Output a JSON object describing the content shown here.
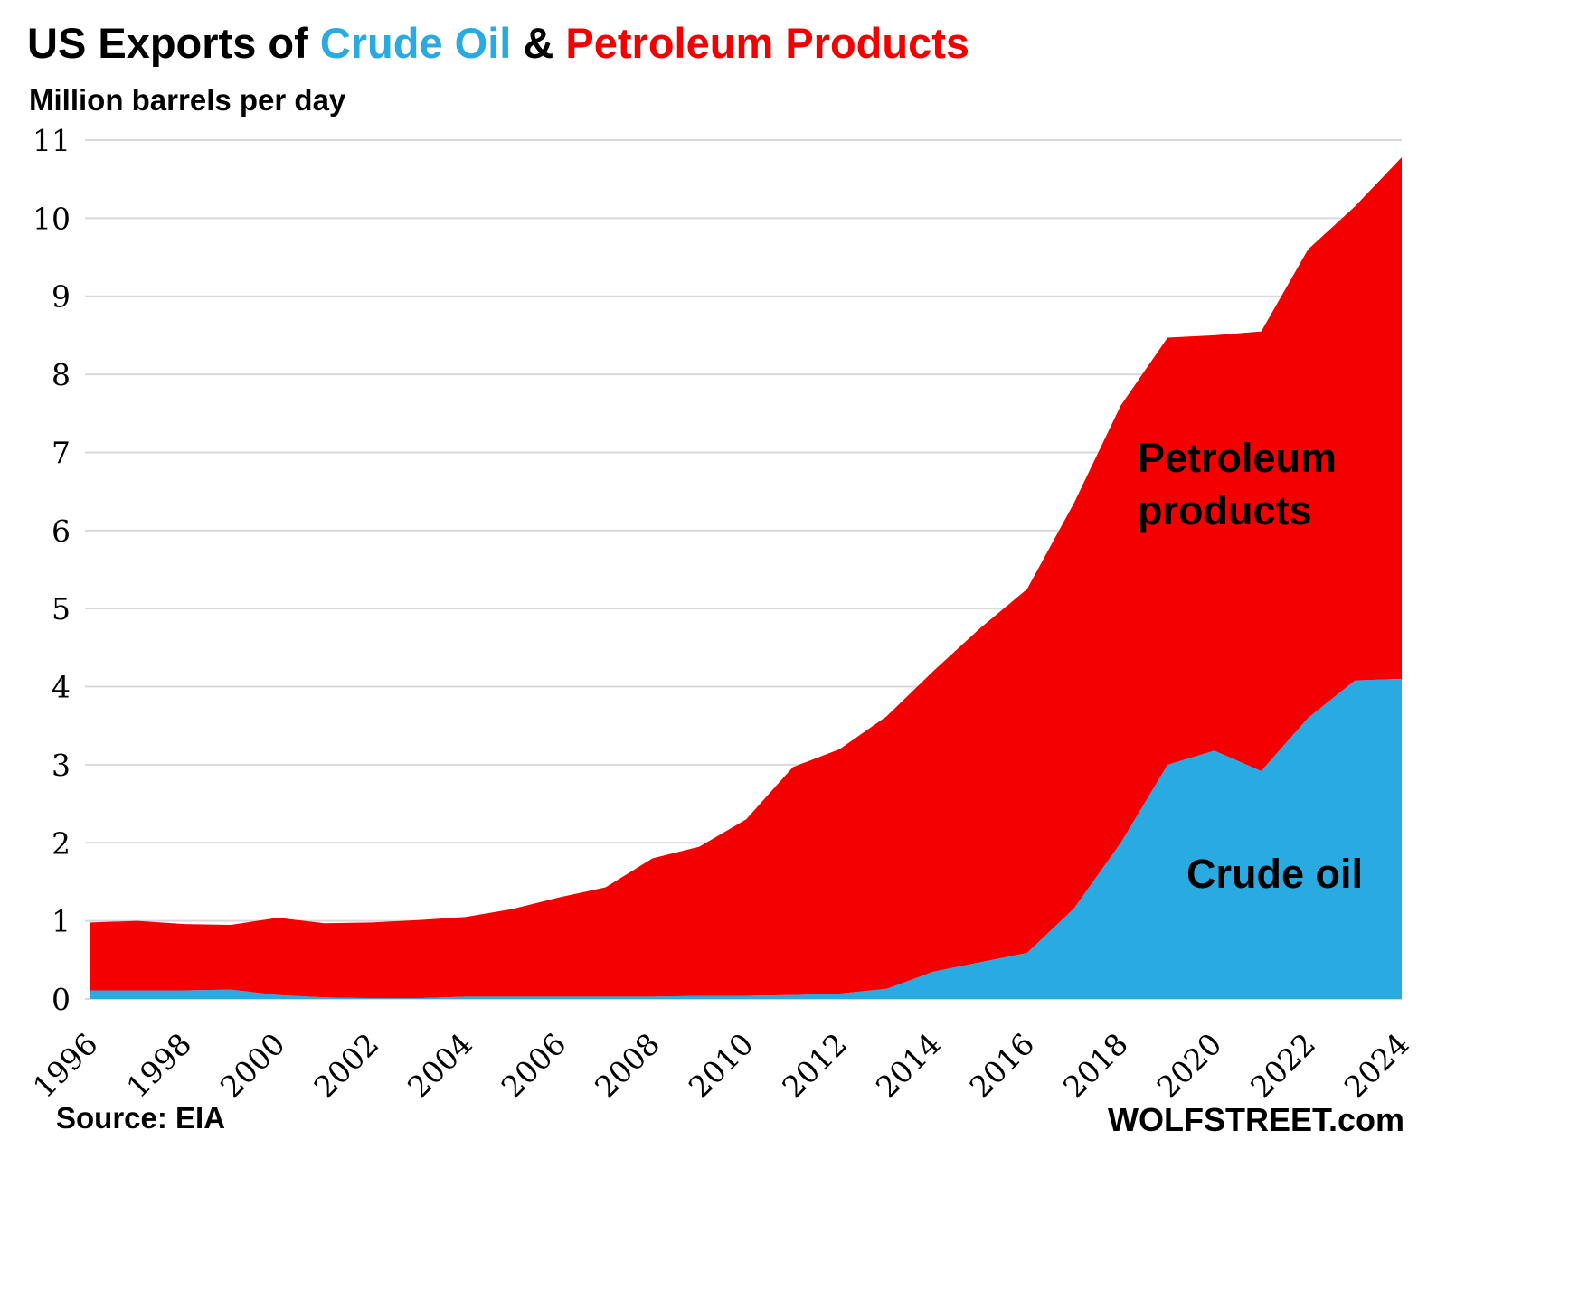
{
  "header": {
    "title_part1": "US Exports of ",
    "title_crude": "Crude Oil",
    "title_amp": " & ",
    "title_products": "Petroleum Products",
    "subtitle": "Million barrels per day"
  },
  "annotations": {
    "products_label": "Petroleum\nproducts",
    "crude_label": "Crude oil"
  },
  "footer": {
    "source": "Source: EIA",
    "watermark": "WOLFSTREET.com"
  },
  "colors": {
    "crude": "#29ABE2",
    "products": "#F40000",
    "grid": "#D9D9D9",
    "text": "#000000"
  },
  "chart_data": {
    "type": "area",
    "stacked": true,
    "title": "US Exports of Crude Oil & Petroleum Products",
    "ylabel": "Million barrels per day",
    "source": "EIA",
    "ylim": [
      0,
      11
    ],
    "y_ticks": [
      0,
      1,
      2,
      3,
      4,
      5,
      6,
      7,
      8,
      9,
      10,
      11
    ],
    "grid": true,
    "legend_position": "inside-annotations",
    "x": [
      1996,
      1997,
      1998,
      1999,
      2000,
      2001,
      2002,
      2003,
      2004,
      2005,
      2006,
      2007,
      2008,
      2009,
      2010,
      2011,
      2012,
      2013,
      2014,
      2015,
      2016,
      2017,
      2018,
      2019,
      2020,
      2021,
      2022,
      2023,
      2024
    ],
    "x_tick_labels": [
      "1996",
      "1998",
      "2000",
      "2002",
      "2004",
      "2006",
      "2008",
      "2010",
      "2012",
      "2014",
      "2016",
      "2018",
      "2020",
      "2022",
      "2024"
    ],
    "series": [
      {
        "name": "Crude oil",
        "color": "#29ABE2",
        "values": [
          0.11,
          0.11,
          0.11,
          0.12,
          0.05,
          0.02,
          0.01,
          0.01,
          0.03,
          0.03,
          0.03,
          0.03,
          0.03,
          0.04,
          0.04,
          0.05,
          0.07,
          0.13,
          0.35,
          0.47,
          0.59,
          1.16,
          2.0,
          3.0,
          3.18,
          2.92,
          3.6,
          4.08,
          4.1
        ]
      },
      {
        "name": "Petroleum products",
        "color": "#F40000",
        "values": [
          0.87,
          0.89,
          0.85,
          0.83,
          0.99,
          0.95,
          0.97,
          1.0,
          1.02,
          1.12,
          1.27,
          1.4,
          1.77,
          1.91,
          2.26,
          2.92,
          3.13,
          3.49,
          3.85,
          4.28,
          4.66,
          5.19,
          5.6,
          5.47,
          5.32,
          5.63,
          6.0,
          6.07,
          6.68
        ]
      }
    ]
  }
}
